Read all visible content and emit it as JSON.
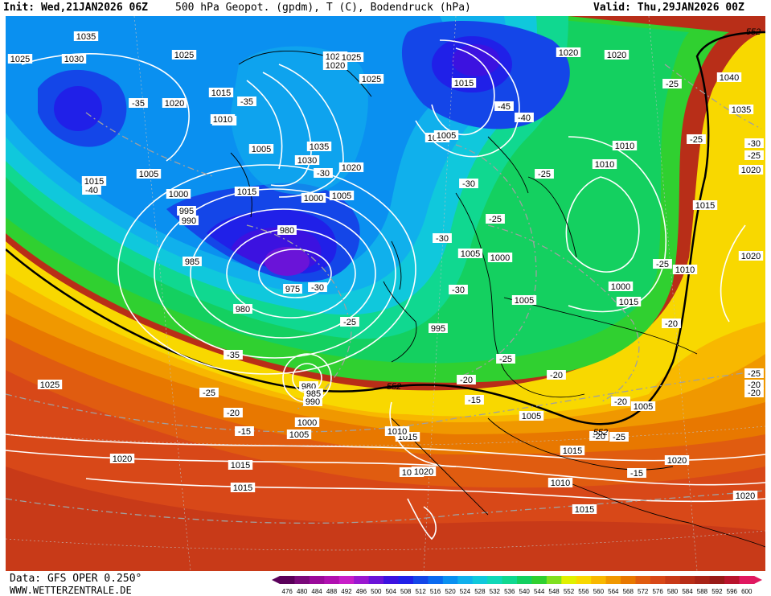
{
  "header": {
    "init": "Init: Wed,21JAN2026 06Z",
    "title": "500 hPa Geopot. (gpdm), T (C), Bodendruck (hPa)",
    "valid": "Valid: Thu,29JAN2026 00Z"
  },
  "footer": {
    "data_source": "Data: GFS OPER 0.250°",
    "website": "WWW.WETTERZENTRALE.DE"
  },
  "color_scale": {
    "ticks": [
      "476",
      "480",
      "484",
      "488",
      "492",
      "496",
      "500",
      "504",
      "508",
      "512",
      "516",
      "520",
      "524",
      "528",
      "532",
      "536",
      "540",
      "544",
      "548",
      "552",
      "556",
      "560",
      "564",
      "568",
      "572",
      "576",
      "580",
      "584",
      "588",
      "592",
      "596",
      "600"
    ],
    "colors": [
      "#5a005a",
      "#7a0a7a",
      "#9a0a9a",
      "#b010b0",
      "#c81ec8",
      "#9a18d0",
      "#6a14d8",
      "#3c12e0",
      "#2020e8",
      "#1446e8",
      "#0a6af0",
      "#0a90f0",
      "#10b0ec",
      "#10c8dc",
      "#10d8b8",
      "#10d890",
      "#14d060",
      "#30d030",
      "#80e020",
      "#e0f000",
      "#f8d800",
      "#f8b800",
      "#f09800",
      "#e87800",
      "#e05c10",
      "#d84818",
      "#c83a18",
      "#b82e18",
      "#a82418",
      "#981a18",
      "#b8142c",
      "#e01860"
    ]
  },
  "pressure_labels": [
    {
      "v": "1035"
    },
    {
      "v": "1025"
    },
    {
      "v": "1030"
    },
    {
      "v": "1025"
    },
    {
      "v": "1020"
    },
    {
      "v": "1025"
    },
    {
      "v": "1025"
    },
    {
      "v": "1015"
    },
    {
      "v": "1010"
    },
    {
      "v": "1020"
    },
    {
      "v": "1010"
    },
    {
      "v": "1020"
    },
    {
      "v": "1020"
    },
    {
      "v": "1040"
    },
    {
      "v": "1035"
    },
    {
      "v": "1020"
    },
    {
      "v": "1005"
    },
    {
      "v": "1035"
    },
    {
      "v": "1005"
    },
    {
      "v": "1030"
    },
    {
      "v": "1020"
    },
    {
      "v": "1015"
    },
    {
      "v": "1005"
    },
    {
      "v": "1000"
    },
    {
      "v": "1015"
    },
    {
      "v": "1000"
    },
    {
      "v": "1005"
    },
    {
      "v": "995"
    },
    {
      "v": "990"
    },
    {
      "v": "980"
    },
    {
      "v": "985"
    },
    {
      "v": "975"
    },
    {
      "v": "980"
    },
    {
      "v": "1015"
    },
    {
      "v": "1010"
    },
    {
      "v": "1010"
    },
    {
      "v": "1005"
    },
    {
      "v": "1000"
    },
    {
      "v": "1005"
    },
    {
      "v": "1005"
    },
    {
      "v": "1000"
    },
    {
      "v": "1010"
    },
    {
      "v": "1020"
    },
    {
      "v": "1015"
    },
    {
      "v": "1015"
    },
    {
      "v": "1020"
    },
    {
      "v": "1025"
    },
    {
      "v": "980"
    },
    {
      "v": "985"
    },
    {
      "v": "990"
    },
    {
      "v": "995"
    },
    {
      "v": "1000"
    },
    {
      "v": "1005"
    },
    {
      "v": "1010"
    },
    {
      "v": "1015"
    },
    {
      "v": "1020"
    },
    {
      "v": "1020"
    },
    {
      "v": "1015"
    },
    {
      "v": "1010"
    },
    {
      "v": "1015"
    },
    {
      "v": "1005"
    },
    {
      "v": "1005"
    },
    {
      "v": "1020"
    },
    {
      "v": "1015"
    },
    {
      "v": "1020"
    },
    {
      "v": "1020"
    },
    {
      "v": "1015"
    }
  ],
  "temperature_labels": [
    {
      "v": "-35"
    },
    {
      "v": "-35"
    },
    {
      "v": "-40"
    },
    {
      "v": "-30"
    },
    {
      "v": "-45"
    },
    {
      "v": "-40"
    },
    {
      "v": "-30"
    },
    {
      "v": "-25"
    },
    {
      "v": "-30"
    },
    {
      "v": "-25"
    },
    {
      "v": "-30"
    },
    {
      "v": "-30"
    },
    {
      "v": "-25"
    },
    {
      "v": "-35"
    },
    {
      "v": "-25"
    },
    {
      "v": "-20"
    },
    {
      "v": "-15"
    },
    {
      "v": "-20"
    },
    {
      "v": "-25"
    },
    {
      "v": "-20"
    },
    {
      "v": "-15"
    },
    {
      "v": "-20"
    },
    {
      "v": "-25"
    },
    {
      "v": "-20"
    },
    {
      "v": "-25"
    },
    {
      "v": "-20"
    },
    {
      "v": "-15"
    },
    {
      "v": "-25"
    },
    {
      "v": "-25"
    },
    {
      "v": "-30"
    },
    {
      "v": "-25"
    },
    {
      "v": "-20"
    },
    {
      "v": "-20"
    },
    {
      "v": "-25"
    }
  ],
  "geopot_labels": [
    {
      "v": "552"
    },
    {
      "v": "552"
    },
    {
      "v": "552"
    }
  ]
}
